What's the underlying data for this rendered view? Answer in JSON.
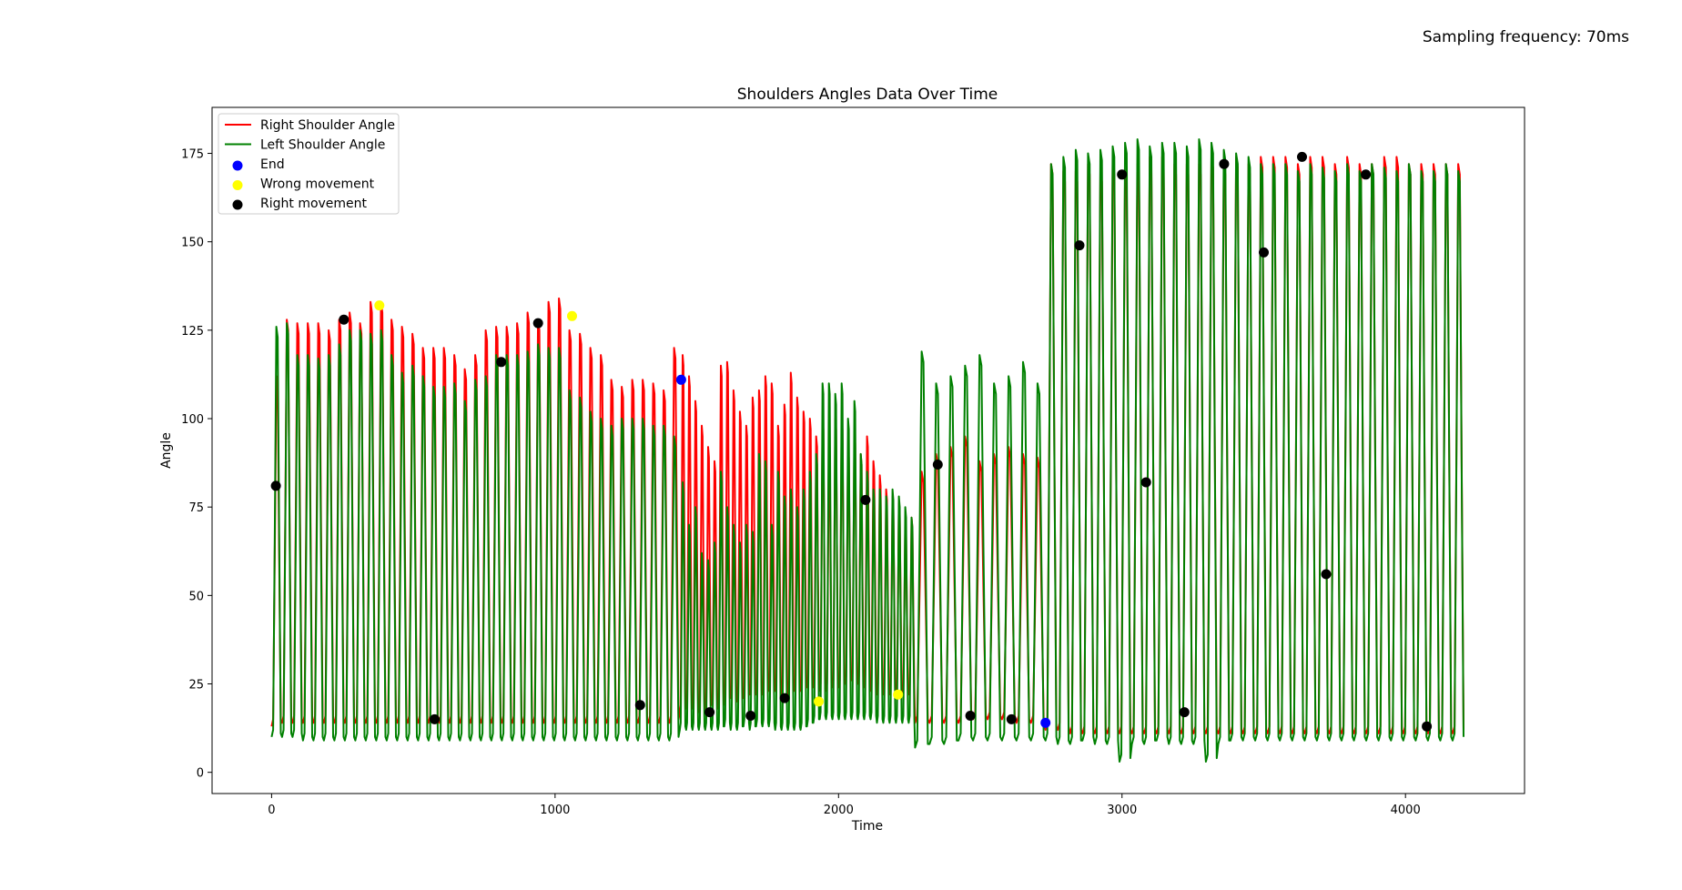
{
  "figure": {
    "annotation": "Sampling frequency: 70ms"
  },
  "chart_data": {
    "type": "line",
    "title": "Shoulders Angles Data Over Time",
    "xlabel": "Time",
    "ylabel": "Angle",
    "xlim": [
      -210,
      4420
    ],
    "ylim": [
      -6,
      188
    ],
    "xticks": [
      0,
      1000,
      2000,
      3000,
      4000
    ],
    "yticks": [
      0,
      25,
      50,
      75,
      100,
      125,
      150,
      175
    ],
    "grid": false,
    "legend_position": "top-left",
    "legend": [
      {
        "label": "Right Shoulder Angle",
        "kind": "line",
        "color": "#ff0000"
      },
      {
        "label": "Left Shoulder Angle",
        "kind": "line",
        "color": "#008000"
      },
      {
        "label": "End",
        "kind": "marker",
        "color": "#0000ff"
      },
      {
        "label": "Wrong movement",
        "kind": "marker",
        "color": "#ffff00"
      },
      {
        "label": "Right movement",
        "kind": "marker",
        "color": "#000000"
      }
    ],
    "series": [
      {
        "name": "Right Shoulder Angle",
        "color": "#ff0000",
        "segments": [
          {
            "x_start": 0,
            "x_end": 1440,
            "period": 50,
            "peaks": [
              112,
              128,
              127,
              127,
              127,
              125,
              128,
              130,
              127,
              133,
              133,
              128,
              126,
              124,
              120,
              120,
              120,
              118,
              114,
              118,
              125,
              126,
              126,
              127,
              130,
              128,
              133,
              134,
              125,
              124,
              120,
              118,
              111,
              109,
              111,
              111,
              110,
              108,
              120
            ],
            "troughs": [
              13,
              14,
              14,
              14,
              14,
              14,
              14,
              14,
              14,
              14,
              14,
              14,
              14,
              14,
              14,
              14,
              14,
              14,
              14,
              14,
              14,
              14,
              14,
              14,
              14,
              14,
              14,
              14,
              14,
              14,
              14,
              14,
              14,
              14,
              14,
              14,
              14,
              14,
              14
            ]
          },
          {
            "x_start": 1440,
            "x_end": 2270,
            "period": 50,
            "peaks": [
              118,
              112,
              105,
              98,
              92,
              88,
              115,
              116,
              108,
              102,
              98,
              106,
              108,
              112,
              110,
              98,
              104,
              113,
              106,
              102,
              100,
              95,
              100,
              92,
              100,
              100,
              92,
              96,
              90,
              95,
              88,
              84,
              80,
              78,
              76,
              70,
              72
            ],
            "troughs": [
              17,
              18,
              18,
              17,
              18,
              19,
              18,
              20,
              21,
              20,
              21,
              22,
              22,
              22,
              23,
              23,
              22,
              22,
              23,
              23,
              24,
              24,
              23,
              23,
              24,
              24,
              25,
              26,
              25,
              24,
              23,
              22,
              22,
              22,
              22,
              22,
              22
            ]
          },
          {
            "x_start": 2270,
            "x_end": 2730,
            "period": 50,
            "peaks": [
              85,
              90,
              92,
              95,
              88,
              90,
              92,
              90,
              89
            ],
            "troughs": [
              14,
              14,
              14,
              14,
              15,
              15,
              15,
              14,
              14
            ]
          },
          {
            "x_start": 2730,
            "x_end": 4210,
            "period": 50,
            "peaks": [
              172,
              170,
              170,
              172,
              170,
              172,
              170,
              172,
              174,
              174,
              172,
              172,
              172,
              174,
              172,
              174,
              172,
              174,
              174,
              174,
              172,
              174,
              174,
              172,
              174,
              172,
              172,
              174,
              174,
              172,
              172,
              172,
              172,
              172
            ],
            "troughs": [
              12,
              12,
              11,
              11,
              11,
              11,
              11,
              11,
              11,
              11,
              11,
              11,
              11,
              11,
              11,
              11,
              11,
              11,
              11,
              11,
              11,
              11,
              11,
              11,
              11,
              11,
              11,
              11,
              11,
              11,
              11,
              11,
              11,
              11
            ]
          }
        ]
      },
      {
        "name": "Left Shoulder Angle",
        "color": "#008000",
        "segments": [
          {
            "x_start": 0,
            "x_end": 1440,
            "period": 50,
            "peaks": [
              126,
              127,
              118,
              118,
              117,
              118,
              121,
              125,
              125,
              124,
              125,
              118,
              113,
              115,
              112,
              109,
              109,
              110,
              105,
              111,
              112,
              118,
              118,
              118,
              119,
              121,
              120,
              120,
              108,
              106,
              102,
              100,
              98,
              100,
              100,
              100,
              98,
              98,
              95
            ],
            "troughs": [
              10,
              10,
              10,
              9,
              9,
              9,
              9,
              9,
              9,
              9,
              9,
              9,
              9,
              9,
              9,
              9,
              9,
              9,
              9,
              9,
              9,
              9,
              9,
              9,
              9,
              9,
              9,
              9,
              9,
              9,
              9,
              9,
              9,
              9,
              9,
              9,
              9,
              9,
              9
            ]
          },
          {
            "x_start": 1440,
            "x_end": 2270,
            "period": 50,
            "peaks": [
              82,
              70,
              75,
              62,
              60,
              65,
              85,
              75,
              70,
              65,
              70,
              68,
              90,
              88,
              70,
              85,
              78,
              80,
              75,
              80,
              85,
              90,
              110,
              110,
              107,
              110,
              100,
              105,
              90,
              85,
              80,
              80,
              78,
              80,
              78,
              75,
              72
            ],
            "troughs": [
              12,
              12,
              12,
              12,
              12,
              12,
              12,
              13,
              12,
              12,
              13,
              12,
              13,
              13,
              13,
              12,
              12,
              12,
              12,
              12,
              13,
              14,
              15,
              15,
              15,
              15,
              15,
              15,
              15,
              15,
              15,
              14,
              14,
              14,
              14,
              14,
              14
            ]
          },
          {
            "x_start": 2270,
            "x_end": 2730,
            "period": 50,
            "peaks": [
              119,
              110,
              112,
              115,
              118,
              110,
              112,
              116,
              110
            ],
            "troughs": [
              7,
              8,
              8,
              9,
              9,
              9,
              9,
              9,
              9
            ]
          },
          {
            "x_start": 2730,
            "x_end": 4210,
            "period": 50,
            "peaks": [
              172,
              174,
              176,
              175,
              176,
              177,
              178,
              179,
              177,
              178,
              178,
              177,
              179,
              178,
              176,
              175,
              174,
              172,
              172,
              172,
              170,
              172,
              171,
              170,
              172,
              170,
              172,
              171,
              170,
              172,
              170,
              170,
              172,
              170
            ],
            "troughs": [
              9,
              8,
              8,
              9,
              8,
              8,
              3,
              8,
              8,
              9,
              8,
              8,
              8,
              3,
              8,
              9,
              9,
              9,
              9,
              9,
              9,
              9,
              9,
              9,
              9,
              9,
              9,
              9,
              9,
              9,
              9,
              9,
              9,
              9
            ]
          }
        ]
      }
    ],
    "markers": [
      {
        "group": "Right movement",
        "color": "#000000",
        "points": [
          [
            15,
            81
          ],
          [
            255,
            128
          ],
          [
            575,
            15
          ],
          [
            810,
            116
          ],
          [
            940,
            127
          ],
          [
            1300,
            19
          ],
          [
            1545,
            17
          ],
          [
            1690,
            16
          ],
          [
            1810,
            21
          ],
          [
            2095,
            77
          ],
          [
            2350,
            87
          ],
          [
            2465,
            16
          ],
          [
            2610,
            15
          ],
          [
            2850,
            149
          ],
          [
            3000,
            169
          ],
          [
            3085,
            82
          ],
          [
            3220,
            17
          ],
          [
            3360,
            172
          ],
          [
            3500,
            147
          ],
          [
            3635,
            174
          ],
          [
            3720,
            56
          ],
          [
            3860,
            169
          ],
          [
            4075,
            13
          ]
        ]
      },
      {
        "group": "Wrong movement",
        "color": "#ffff00",
        "points": [
          [
            380,
            132
          ],
          [
            1060,
            129
          ],
          [
            1930,
            20
          ],
          [
            2210,
            22
          ]
        ]
      },
      {
        "group": "End",
        "color": "#0000ff",
        "points": [
          [
            1445,
            111
          ],
          [
            2730,
            14
          ]
        ]
      }
    ]
  }
}
